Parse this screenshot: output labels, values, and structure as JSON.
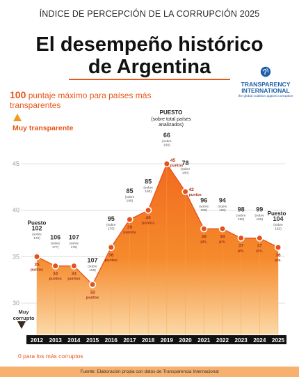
{
  "header": {
    "kicker": "ÍNDICE DE PERCEPCIÓN DE LA CORRUPCIÓN 2025",
    "title_line1": "El desempeño histórico",
    "title_line2": "de Argentina"
  },
  "logo": {
    "name_line1": "TRANSPARENCY",
    "name_line2": "INTERNATIONAL",
    "tagline": "the global coalition against corruption"
  },
  "notes": {
    "top_number": "100",
    "top_text": "puntaje máximo para países más transparentes",
    "muy_transparente": "Muy transparente",
    "muy_corrupto_line1": "Muy",
    "muy_corrupto_line2": "corrupto",
    "bottom": "0 para los más corruptos",
    "puesto_title": "PUESTO",
    "puesto_sub": "(sobre total países analizados)"
  },
  "source": "Fuente: Elaboración propia con datos de Transparencia Internacional",
  "colors": {
    "accent": "#e8571a",
    "area_top": "#f26a1f",
    "area_bottom": "#fbd9a8",
    "marker": "#e4511c",
    "year_bar": "#121212"
  },
  "chart_data": {
    "type": "area",
    "x": [
      "2012",
      "2013",
      "2014",
      "2015",
      "2016",
      "2017",
      "2018",
      "2019",
      "2020",
      "2021",
      "2022",
      "2023",
      "2024",
      "2025"
    ],
    "series": [
      {
        "values": [
          35,
          34,
          34,
          32,
          36,
          39,
          40,
          45,
          42,
          38,
          38,
          37,
          37,
          36
        ]
      }
    ],
    "ranks": [
      "102",
      "106",
      "107",
      "107",
      "95",
      "85",
      "85",
      "66",
      "78",
      "96",
      "94",
      "98",
      "99",
      "104"
    ],
    "rank_totals": [
      "(sobre 176)",
      "(sobre 177)",
      "(sobre 175)",
      "(sobre 168)",
      "(sobre 176)",
      "(sobre 180)",
      "(sobre 180)",
      "(sobre 180)",
      "(sobre 180)",
      "(sobre 180)",
      "(sobre 180)",
      "(sobre 180)",
      "(sobre 180)",
      "(sobre 182)"
    ],
    "rank_prefix_first": "Puesto",
    "rank_prefix_last": "Puesto",
    "score_labels": [
      "35 puntos",
      "34 puntos",
      "34 puntos",
      "32 puntos",
      "36 puntos",
      "39 puntos",
      "40 puntos",
      "45 puntos",
      "42 puntos",
      "38 pts.",
      "38 pts.",
      "37 pts.",
      "37 pts.",
      "36 pts."
    ],
    "yticks": [
      30,
      35,
      40,
      45
    ],
    "ylim": [
      25,
      49
    ],
    "grid": true
  }
}
